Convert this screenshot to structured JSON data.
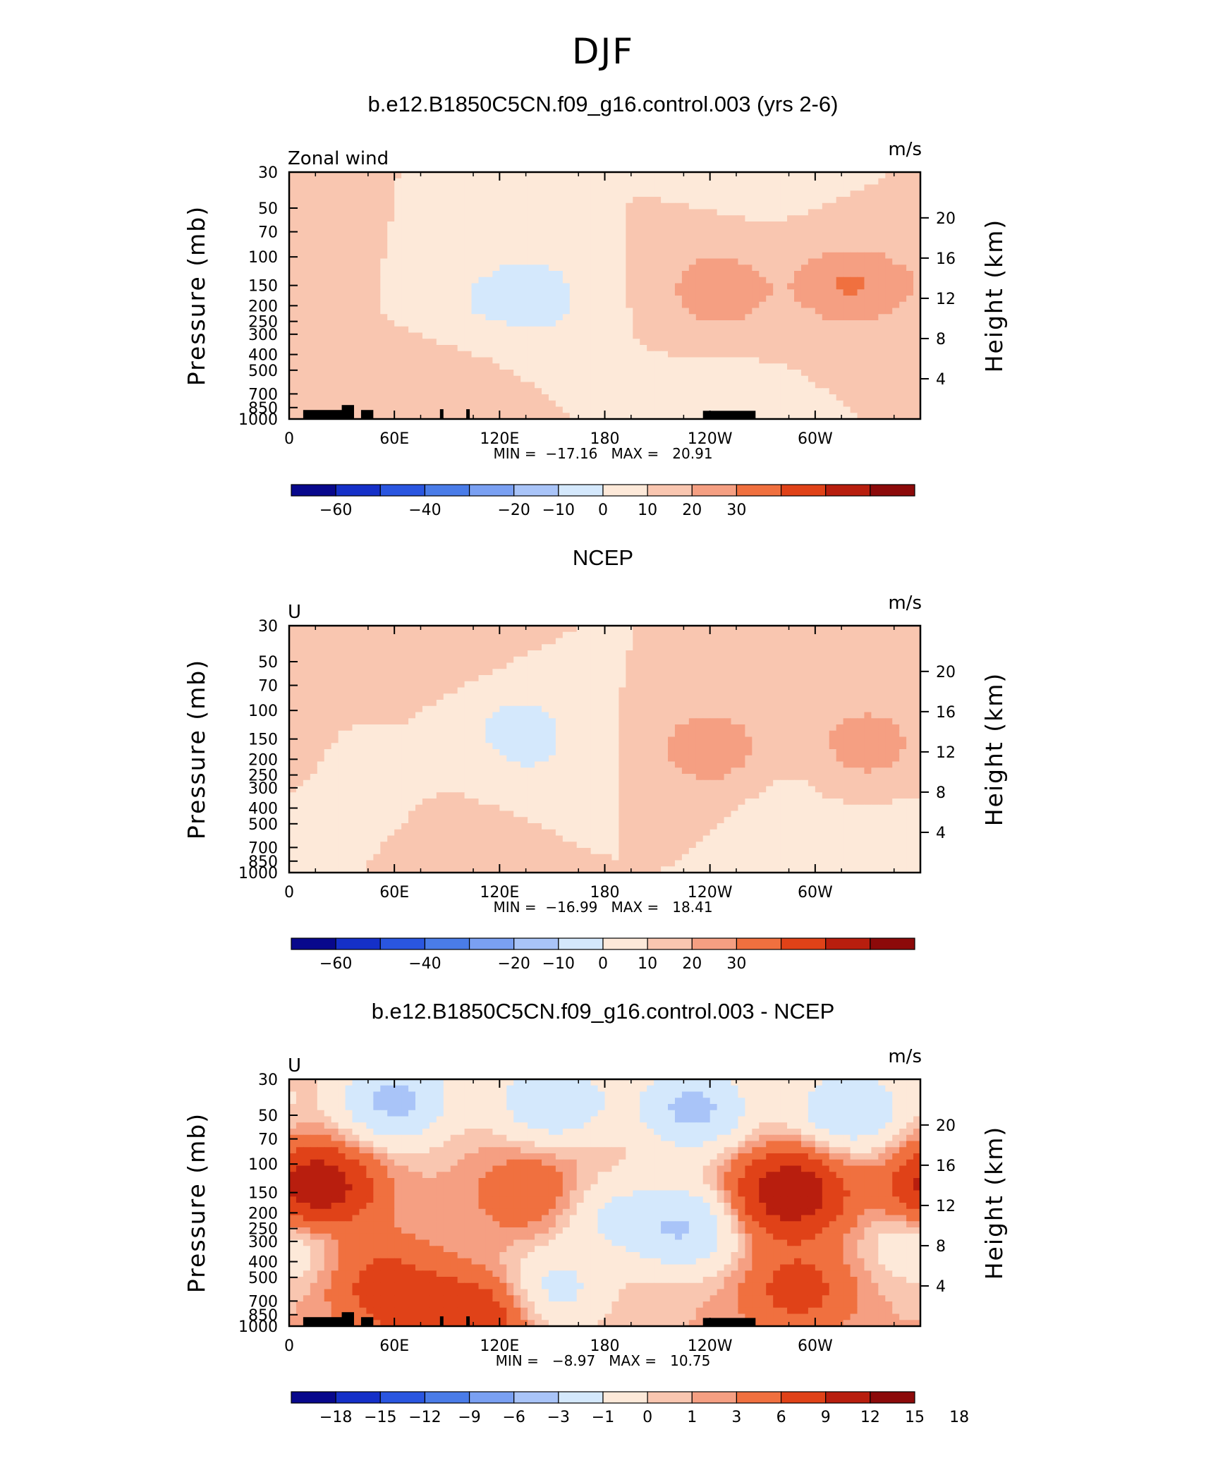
{
  "page_title": "DJF",
  "colors": {
    "level_palette": [
      "#08088c",
      "#1530c8",
      "#2a56e0",
      "#4a7ce8",
      "#7aa0f2",
      "#a9c4f8",
      "#d4e8fc",
      "#fde9d9",
      "#f9c6b0",
      "#f59f82",
      "#f0703f",
      "#e04218",
      "#b81e0e",
      "#8c0a0a"
    ],
    "land": "#000000"
  },
  "panels": [
    {
      "title": "b.e12.B1850C5CN.f09_g16.control.003 (yrs 2-6)",
      "left_label": "Zonal wind",
      "units": "m/s",
      "stats": "MIN =  −17.16   MAX =   20.91",
      "colorbar_labels": [
        "−60",
        "−40",
        "−20",
        "−10",
        "0",
        "10",
        "20",
        "30"
      ]
    },
    {
      "title": "NCEP",
      "left_label": "U",
      "units": "m/s",
      "stats": "MIN =  −16.99   MAX =   18.41",
      "colorbar_labels": [
        "−60",
        "−40",
        "−20",
        "−10",
        "0",
        "10",
        "20",
        "30"
      ]
    },
    {
      "title": "b.e12.B1850C5CN.f09_g16.control.003 - NCEP",
      "left_label": "U",
      "units": "m/s",
      "stats": "MIN =   −8.97   MAX =   10.75",
      "colorbar_labels": [
        "−18",
        "−15",
        "−12",
        "−9",
        "−6",
        "−3",
        "−1",
        "0",
        "1",
        "3",
        "6",
        "9",
        "12",
        "15",
        "18"
      ]
    }
  ],
  "chart_data": [
    {
      "type": "heatmap",
      "title": "b.e12.B1850C5CN.f09_g16.control.003 (yrs 2-6)",
      "xlabel": "",
      "ylabel": "Pressure (mb)",
      "ylabel_right": "Height (km)",
      "x_ticks": [
        "0",
        "60E",
        "120E",
        "180",
        "120W",
        "60W"
      ],
      "y_ticks": [
        "30",
        "50",
        "70",
        "100",
        "150",
        "200",
        "250",
        "300",
        "400",
        "500",
        "700",
        "850",
        "1000"
      ],
      "height_ticks": [
        "4",
        "8",
        "12",
        "16",
        "20"
      ],
      "min": -17.16,
      "max": 20.91,
      "levels": [
        -70,
        -60,
        -50,
        -40,
        -30,
        -20,
        -10,
        0,
        10,
        20,
        30,
        40
      ],
      "features": [
        {
          "lon": 138,
          "p": 150,
          "value": -12
        },
        {
          "lon": 102,
          "p": 200,
          "value": -7
        },
        {
          "lon": 150,
          "p": 250,
          "value": -5
        },
        {
          "lon": 245,
          "p": 160,
          "value": 18
        },
        {
          "lon": 318,
          "p": 150,
          "value": 20
        },
        {
          "lon": 0,
          "p": 150,
          "value": 6
        },
        {
          "lon": 65,
          "p": 500,
          "value": 3
        },
        {
          "lon": 90,
          "p": 700,
          "value": 6
        },
        {
          "lon": 240,
          "p": 700,
          "value": -3
        },
        {
          "lon": 270,
          "p": 30,
          "value": -3
        }
      ]
    },
    {
      "type": "heatmap",
      "title": "NCEP",
      "xlabel": "",
      "ylabel": "Pressure (mb)",
      "ylabel_right": "Height (km)",
      "x_ticks": [
        "0",
        "60E",
        "120E",
        "180",
        "120W",
        "60W"
      ],
      "y_ticks": [
        "30",
        "50",
        "70",
        "100",
        "150",
        "200",
        "250",
        "300",
        "400",
        "500",
        "700",
        "850",
        "1000"
      ],
      "height_ticks": [
        "4",
        "8",
        "12",
        "16",
        "20"
      ],
      "min": -16.99,
      "max": 18.41,
      "levels": [
        -70,
        -60,
        -50,
        -40,
        -30,
        -20,
        -10,
        0,
        10,
        20,
        30,
        40
      ],
      "features": [
        {
          "lon": 130,
          "p": 120,
          "value": -12
        },
        {
          "lon": 140,
          "p": 200,
          "value": -6
        },
        {
          "lon": 40,
          "p": 300,
          "value": -3
        },
        {
          "lon": 240,
          "p": 170,
          "value": 18
        },
        {
          "lon": 330,
          "p": 160,
          "value": 16
        },
        {
          "lon": 40,
          "p": 50,
          "value": 3
        },
        {
          "lon": 100,
          "p": 50,
          "value": 3
        },
        {
          "lon": 100,
          "p": 700,
          "value": 4
        },
        {
          "lon": 340,
          "p": 700,
          "value": -6
        },
        {
          "lon": 280,
          "p": 350,
          "value": -3
        }
      ]
    },
    {
      "type": "heatmap",
      "title": "b.e12.B1850C5CN.f09_g16.control.003 - NCEP",
      "xlabel": "",
      "ylabel": "Pressure (mb)",
      "ylabel_right": "Height (km)",
      "x_ticks": [
        "0",
        "60E",
        "120E",
        "180",
        "120W",
        "60W"
      ],
      "y_ticks": [
        "30",
        "50",
        "70",
        "100",
        "150",
        "200",
        "250",
        "300",
        "400",
        "500",
        "700",
        "850",
        "1000"
      ],
      "height_ticks": [
        "4",
        "8",
        "12",
        "16",
        "20"
      ],
      "min": -8.97,
      "max": 10.75,
      "levels": [
        -21,
        -18,
        -15,
        -12,
        -9,
        -6,
        -3,
        -1,
        0,
        1,
        3,
        6,
        9,
        12,
        15,
        18
      ],
      "features": [
        {
          "lon": 60,
          "p": 40,
          "value": -7
        },
        {
          "lon": 150,
          "p": 40,
          "value": -6
        },
        {
          "lon": 230,
          "p": 45,
          "value": -7
        },
        {
          "lon": 320,
          "p": 45,
          "value": -6
        },
        {
          "lon": 15,
          "p": 140,
          "value": 9
        },
        {
          "lon": 140,
          "p": 150,
          "value": 3
        },
        {
          "lon": 285,
          "p": 150,
          "value": 9
        },
        {
          "lon": 225,
          "p": 250,
          "value": -6
        },
        {
          "lon": 180,
          "p": 200,
          "value": -3
        },
        {
          "lon": 50,
          "p": 500,
          "value": 3
        },
        {
          "lon": 150,
          "p": 600,
          "value": -4
        },
        {
          "lon": 290,
          "p": 600,
          "value": 4
        },
        {
          "lon": 70,
          "p": 800,
          "value": 3
        },
        {
          "lon": 110,
          "p": 850,
          "value": 5
        },
        {
          "lon": 0,
          "p": 300,
          "value": -3
        }
      ]
    }
  ]
}
